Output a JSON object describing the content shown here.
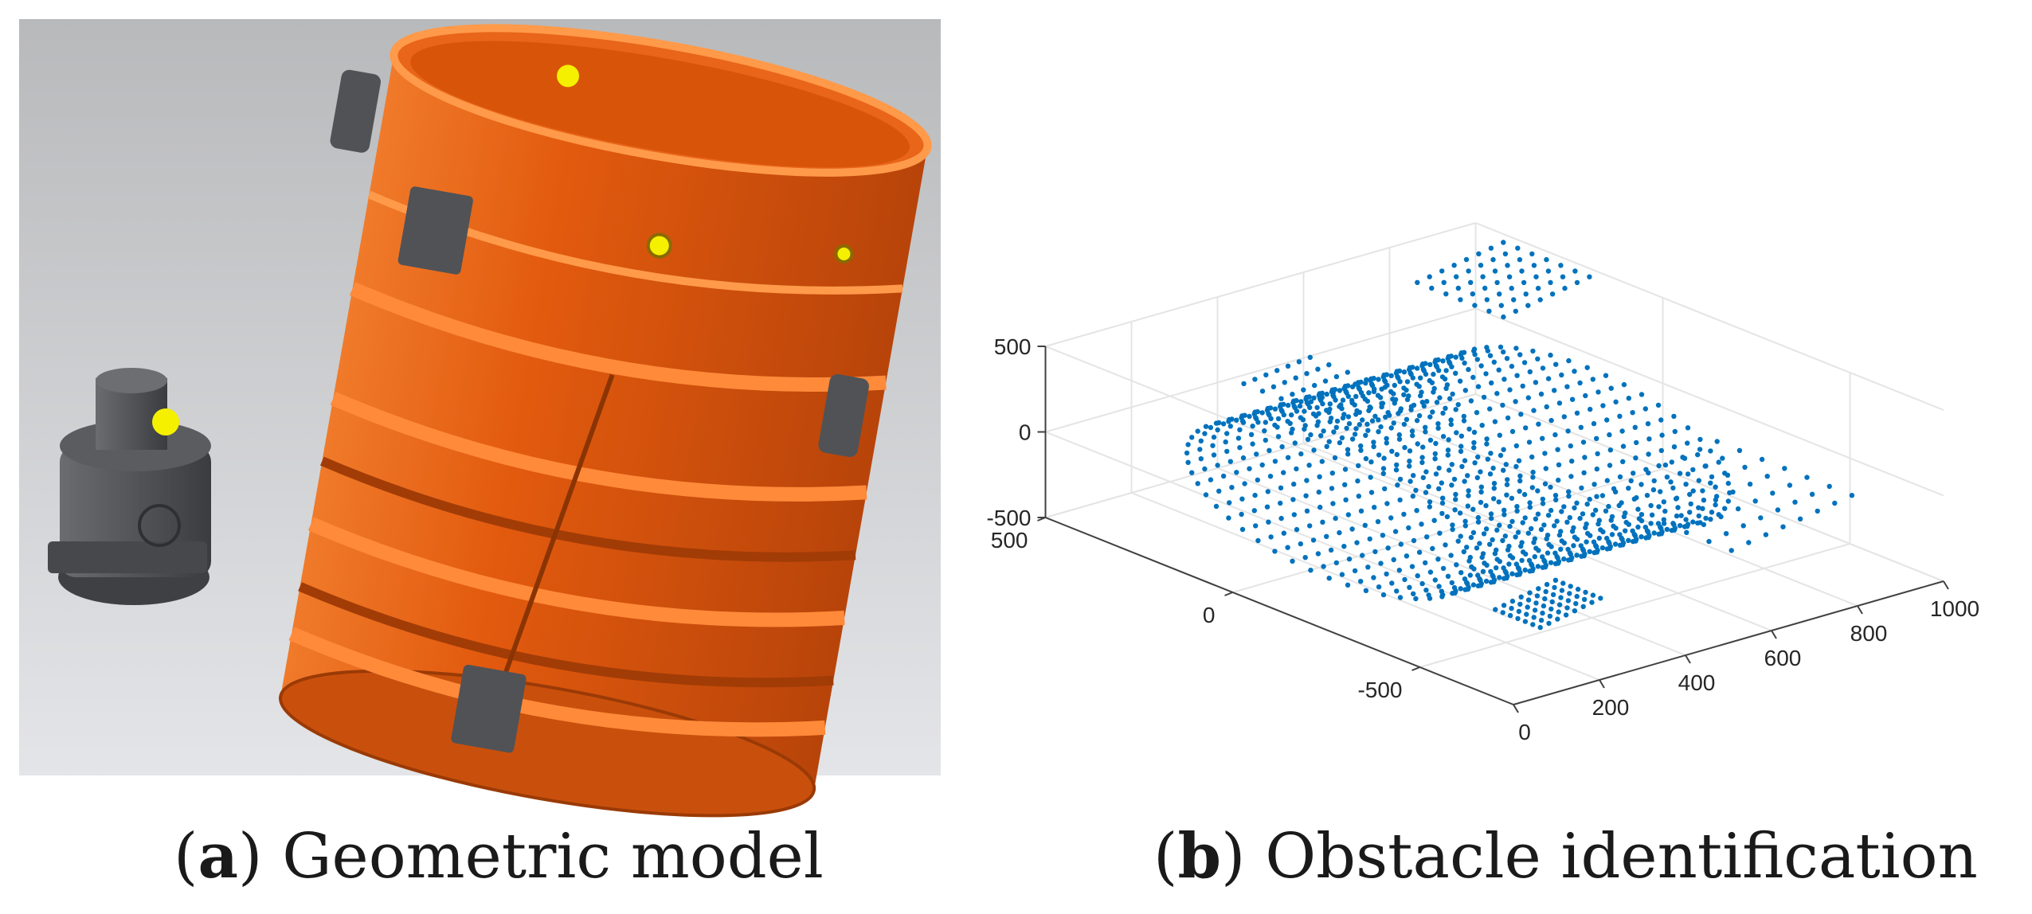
{
  "figure": {
    "panel_a": {
      "label": "a",
      "caption": "Geometric model",
      "colors": {
        "background_top": "#b8b9bb",
        "background_bottom": "#e4e5e8",
        "body": "#e25a0e",
        "body_light": "#f07a2a",
        "parts": "#505256",
        "marker": "#f4f000"
      }
    },
    "panel_b": {
      "label": "b",
      "caption": "Obstacle identification",
      "chart_data": {
        "type": "scatter3d",
        "title": "",
        "xlabel": "",
        "ylabel": "",
        "zlabel": "",
        "x_ticks": [
          "0",
          "200",
          "400",
          "600",
          "800",
          "1000"
        ],
        "y_ticks": [
          "500",
          "0",
          "-500"
        ],
        "z_ticks": [
          "500",
          "0",
          "-500"
        ],
        "xlim": [
          0,
          1000
        ],
        "ylim": [
          -750,
          500
        ],
        "zlim": [
          -500,
          500
        ],
        "grid": true,
        "marker_color": "#0072bd",
        "objects": [
          {
            "shape": "cylinder",
            "axis": "x",
            "x_range": [
              120,
              720
            ],
            "radius": 380
          },
          {
            "shape": "bracket_patch",
            "x_range": [
              200,
              380
            ],
            "y_range": [
              -100,
              200
            ],
            "z_range": [
              400,
              450
            ]
          },
          {
            "shape": "bracket_patch",
            "x_range": [
              760,
              960
            ],
            "y_range": [
              150,
              380
            ],
            "z_range": [
              430,
              520
            ]
          },
          {
            "shape": "bracket_patch",
            "x_range": [
              620,
              900
            ],
            "y_range": [
              -620,
              -260
            ],
            "z_range": [
              -160,
              -40
            ]
          },
          {
            "shape": "bracket_patch",
            "x_range": [
              280,
              420
            ],
            "y_range": [
              -500,
              -380
            ],
            "z_range": [
              -470,
              -400
            ]
          }
        ]
      }
    }
  }
}
